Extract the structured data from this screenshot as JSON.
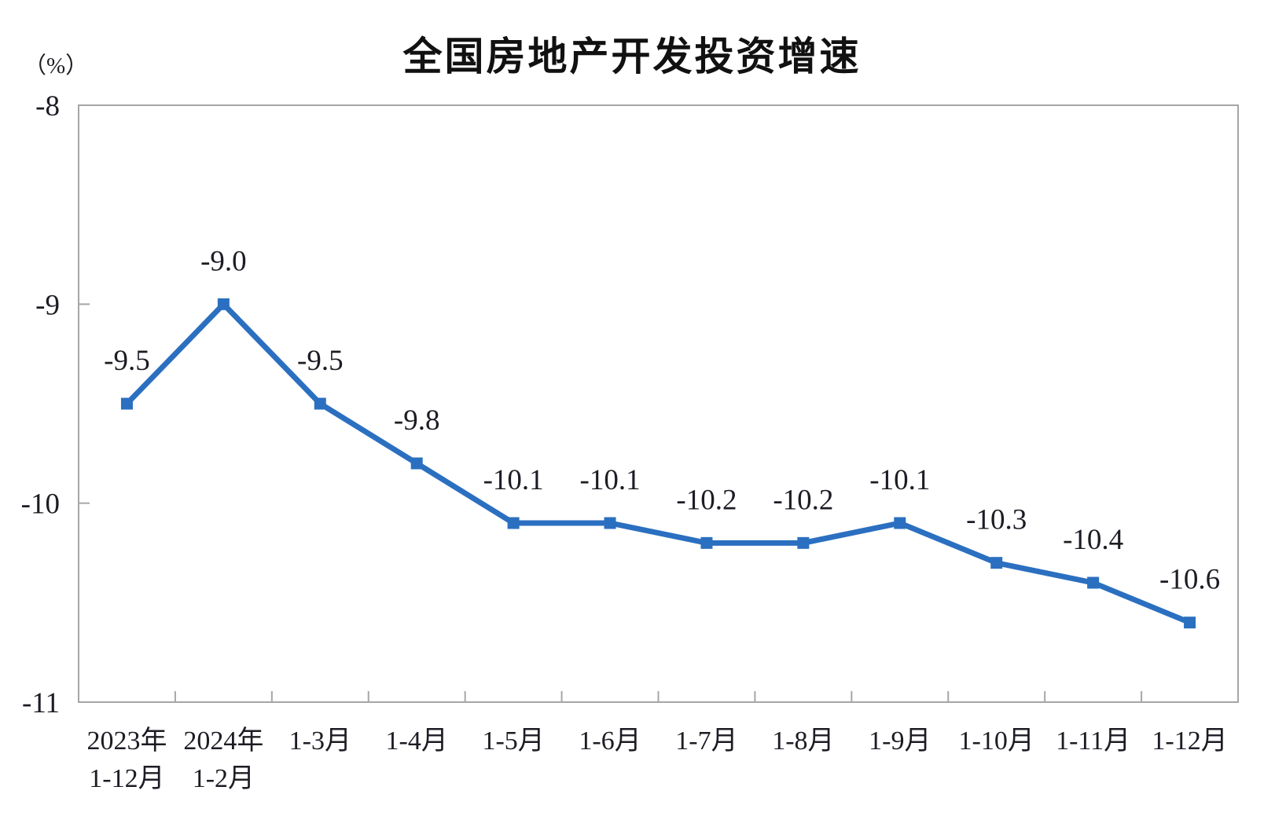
{
  "chart_data": {
    "type": "line",
    "title": "全国房地产开发投资增速",
    "unit_label": "（%）",
    "categories": [
      [
        "2023年",
        "1-12月"
      ],
      [
        "2024年",
        "1-2月"
      ],
      [
        "1-3月"
      ],
      [
        "1-4月"
      ],
      [
        "1-5月"
      ],
      [
        "1-6月"
      ],
      [
        "1-7月"
      ],
      [
        "1-8月"
      ],
      [
        "1-9月"
      ],
      [
        "1-10月"
      ],
      [
        "1-11月"
      ],
      [
        "1-12月"
      ]
    ],
    "values": [
      -9.5,
      -9.0,
      -9.5,
      -9.8,
      -10.1,
      -10.1,
      -10.2,
      -10.2,
      -10.1,
      -10.3,
      -10.4,
      -10.6
    ],
    "labels": [
      "-9.5",
      "-9.0",
      "-9.5",
      "-9.8",
      "-10.1",
      "-10.1",
      "-10.2",
      "-10.2",
      "-10.1",
      "-10.3",
      "-10.4",
      "-10.6"
    ],
    "y_axis": {
      "max": -8,
      "min": -11,
      "ticks": [
        -8,
        -9,
        -10,
        -11
      ],
      "tick_labels": [
        "-8",
        "-9",
        "-10",
        "-11"
      ]
    },
    "xlabel": "",
    "ylabel": "（%）",
    "grid": false,
    "legend_position": "none",
    "marker": "square",
    "colors": {
      "line": "#2B6FC0",
      "marker": "#2B6FC0",
      "axis": "#A6A6A6",
      "text": "#1C1C24",
      "title": "#111111"
    }
  }
}
